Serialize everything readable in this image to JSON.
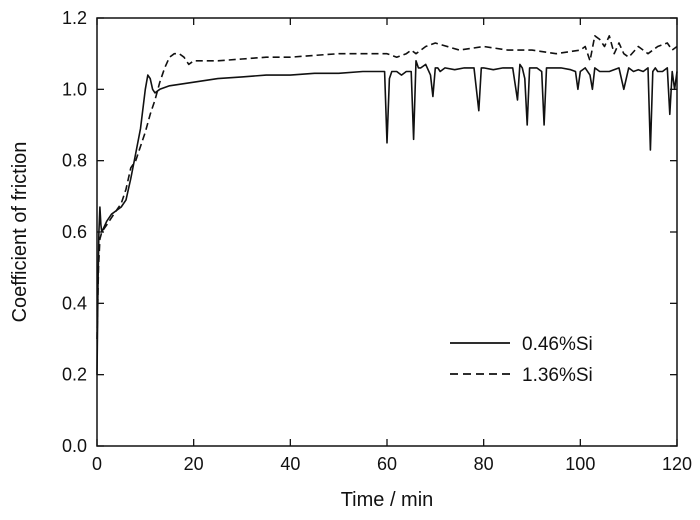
{
  "chart_data": {
    "type": "line",
    "title": "",
    "xlabel": "Time / min",
    "ylabel": "Coefficient of friction",
    "xlim": [
      0,
      120
    ],
    "ylim": [
      0.0,
      1.2
    ],
    "xticks": [
      0,
      20,
      40,
      60,
      80,
      100,
      120
    ],
    "yticks": [
      "0.0",
      "0.2",
      "0.4",
      "0.6",
      "0.8",
      "1.0",
      "1.2"
    ],
    "grid": false,
    "legend_position": "lower-right",
    "series": [
      {
        "name": "0.46%Si",
        "style": "solid",
        "color": "#111111",
        "x": [
          0,
          0.2,
          0.4,
          0.6,
          0.8,
          1,
          2,
          3,
          4,
          5,
          6,
          7,
          8,
          9,
          10,
          10.5,
          11,
          11.5,
          12,
          13,
          15,
          20,
          25,
          30,
          35,
          40,
          45,
          50,
          55,
          59,
          59.5,
          60,
          60.5,
          61,
          62,
          63,
          64,
          65,
          65.5,
          66,
          66.5,
          67,
          68,
          69,
          69.5,
          70,
          70.5,
          71,
          72,
          74,
          76,
          78,
          78.5,
          79,
          79.5,
          80,
          82,
          84,
          86,
          87,
          87.5,
          88,
          88.5,
          89,
          89.5,
          90,
          91,
          92,
          92.5,
          93,
          93.5,
          94,
          96,
          98,
          99,
          99.5,
          100,
          101,
          102,
          102.5,
          103,
          104,
          106,
          108,
          109,
          110,
          111,
          112,
          113,
          114,
          114.5,
          115,
          115.5,
          116,
          117,
          118,
          118.5,
          119,
          119.5,
          120
        ],
        "y": [
          0.2,
          0.45,
          0.6,
          0.67,
          0.62,
          0.6,
          0.63,
          0.65,
          0.66,
          0.67,
          0.69,
          0.75,
          0.82,
          0.89,
          1.0,
          1.04,
          1.03,
          1.0,
          0.99,
          1.0,
          1.01,
          1.02,
          1.03,
          1.035,
          1.04,
          1.04,
          1.045,
          1.045,
          1.05,
          1.05,
          1.05,
          0.85,
          1.03,
          1.05,
          1.05,
          1.04,
          1.05,
          1.05,
          0.86,
          1.08,
          1.06,
          1.06,
          1.07,
          1.04,
          0.98,
          1.06,
          1.06,
          1.05,
          1.06,
          1.055,
          1.06,
          1.06,
          1.0,
          0.94,
          1.06,
          1.06,
          1.055,
          1.06,
          1.06,
          0.97,
          1.07,
          1.06,
          1.03,
          0.9,
          1.06,
          1.06,
          1.06,
          1.05,
          0.9,
          1.06,
          1.06,
          1.06,
          1.06,
          1.055,
          1.05,
          1.0,
          1.05,
          1.06,
          1.04,
          1.0,
          1.06,
          1.05,
          1.05,
          1.06,
          1.0,
          1.06,
          1.05,
          1.055,
          1.05,
          1.06,
          0.83,
          1.05,
          1.06,
          1.05,
          1.05,
          1.06,
          0.93,
          1.05,
          1.0,
          1.05
        ]
      },
      {
        "name": "1.36%Si",
        "style": "dashed",
        "color": "#111111",
        "x": [
          0,
          0.3,
          0.6,
          1,
          2,
          3,
          4,
          5,
          6,
          7,
          8,
          9,
          10,
          11,
          12,
          13,
          14,
          15,
          16,
          17,
          18,
          19,
          20,
          25,
          30,
          35,
          40,
          45,
          50,
          55,
          60,
          62,
          64,
          65,
          66,
          68,
          70,
          75,
          80,
          85,
          90,
          95,
          100,
          101,
          102,
          103,
          104,
          105,
          106,
          107,
          108,
          109,
          110,
          112,
          114,
          116,
          118,
          119,
          120
        ],
        "y": [
          0.3,
          0.5,
          0.58,
          0.6,
          0.62,
          0.64,
          0.66,
          0.68,
          0.72,
          0.78,
          0.8,
          0.84,
          0.88,
          0.93,
          0.97,
          1.02,
          1.06,
          1.09,
          1.1,
          1.1,
          1.09,
          1.07,
          1.08,
          1.08,
          1.085,
          1.09,
          1.09,
          1.095,
          1.1,
          1.1,
          1.1,
          1.09,
          1.1,
          1.11,
          1.1,
          1.12,
          1.13,
          1.11,
          1.12,
          1.11,
          1.11,
          1.1,
          1.11,
          1.12,
          1.08,
          1.15,
          1.14,
          1.12,
          1.15,
          1.1,
          1.13,
          1.1,
          1.09,
          1.12,
          1.1,
          1.12,
          1.13,
          1.11,
          1.12
        ]
      }
    ]
  }
}
